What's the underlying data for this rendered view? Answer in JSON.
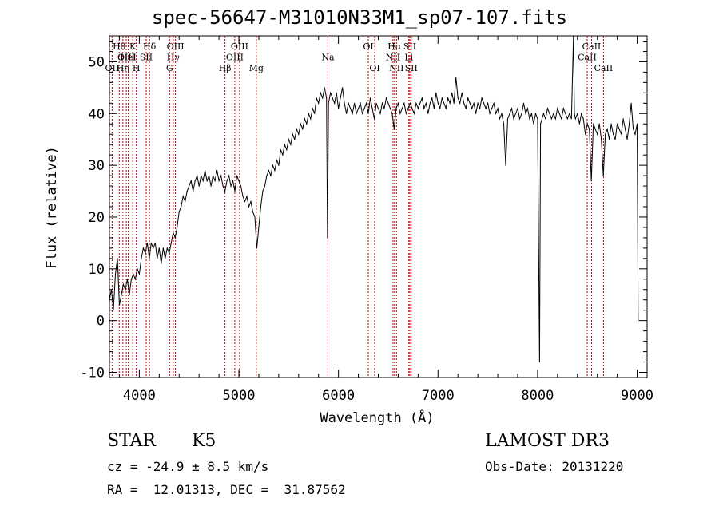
{
  "chart_data": {
    "type": "line",
    "title": "spec-56647-M31010N33M1_sp07-107.fits",
    "xlabel": "Wavelength (Å)",
    "ylabel": "Flux (relative)",
    "xlim": [
      3700,
      9100
    ],
    "ylim": [
      -11,
      55
    ],
    "xticks": [
      4000,
      5000,
      6000,
      7000,
      8000,
      9000
    ],
    "yticks": [
      -10,
      0,
      10,
      20,
      30,
      40,
      50
    ],
    "series": [
      {
        "name": "spectrum",
        "color": "#000000",
        "points": [
          [
            3700,
            4
          ],
          [
            3720,
            6
          ],
          [
            3740,
            2
          ],
          [
            3760,
            9
          ],
          [
            3780,
            12
          ],
          [
            3800,
            3
          ],
          [
            3820,
            5
          ],
          [
            3840,
            7
          ],
          [
            3860,
            6
          ],
          [
            3880,
            8
          ],
          [
            3900,
            5
          ],
          [
            3920,
            8
          ],
          [
            3940,
            9
          ],
          [
            3960,
            8
          ],
          [
            3980,
            10
          ],
          [
            4000,
            9
          ],
          [
            4020,
            12
          ],
          [
            4040,
            14
          ],
          [
            4060,
            13
          ],
          [
            4080,
            15
          ],
          [
            4100,
            12
          ],
          [
            4120,
            15
          ],
          [
            4140,
            14
          ],
          [
            4160,
            15
          ],
          [
            4180,
            12
          ],
          [
            4200,
            14
          ],
          [
            4220,
            11
          ],
          [
            4240,
            14
          ],
          [
            4260,
            12
          ],
          [
            4280,
            14
          ],
          [
            4300,
            13
          ],
          [
            4320,
            15
          ],
          [
            4340,
            17
          ],
          [
            4360,
            16
          ],
          [
            4380,
            18
          ],
          [
            4400,
            21
          ],
          [
            4420,
            22
          ],
          [
            4440,
            24
          ],
          [
            4460,
            23
          ],
          [
            4480,
            25
          ],
          [
            4500,
            26
          ],
          [
            4520,
            27
          ],
          [
            4540,
            25
          ],
          [
            4560,
            27
          ],
          [
            4580,
            28
          ],
          [
            4600,
            26
          ],
          [
            4620,
            28
          ],
          [
            4640,
            27
          ],
          [
            4660,
            29
          ],
          [
            4680,
            27
          ],
          [
            4700,
            28
          ],
          [
            4720,
            26
          ],
          [
            4740,
            28
          ],
          [
            4760,
            27
          ],
          [
            4780,
            29
          ],
          [
            4800,
            27
          ],
          [
            4820,
            28
          ],
          [
            4840,
            26
          ],
          [
            4860,
            25
          ],
          [
            4880,
            27
          ],
          [
            4900,
            28
          ],
          [
            4920,
            26
          ],
          [
            4940,
            27
          ],
          [
            4960,
            25
          ],
          [
            4980,
            28
          ],
          [
            5000,
            27
          ],
          [
            5020,
            26
          ],
          [
            5040,
            24
          ],
          [
            5060,
            23
          ],
          [
            5080,
            24
          ],
          [
            5100,
            22
          ],
          [
            5120,
            23
          ],
          [
            5140,
            21
          ],
          [
            5160,
            20
          ],
          [
            5180,
            14
          ],
          [
            5200,
            18
          ],
          [
            5220,
            22
          ],
          [
            5240,
            25
          ],
          [
            5260,
            26
          ],
          [
            5280,
            28
          ],
          [
            5300,
            29
          ],
          [
            5320,
            28
          ],
          [
            5340,
            30
          ],
          [
            5360,
            29
          ],
          [
            5380,
            31
          ],
          [
            5400,
            30
          ],
          [
            5420,
            33
          ],
          [
            5440,
            32
          ],
          [
            5460,
            34
          ],
          [
            5480,
            33
          ],
          [
            5500,
            35
          ],
          [
            5520,
            34
          ],
          [
            5540,
            36
          ],
          [
            5560,
            35
          ],
          [
            5580,
            37
          ],
          [
            5600,
            36
          ],
          [
            5620,
            38
          ],
          [
            5640,
            37
          ],
          [
            5660,
            39
          ],
          [
            5680,
            38
          ],
          [
            5700,
            40
          ],
          [
            5720,
            39
          ],
          [
            5740,
            41
          ],
          [
            5760,
            40
          ],
          [
            5780,
            43
          ],
          [
            5800,
            42
          ],
          [
            5820,
            44
          ],
          [
            5840,
            43
          ],
          [
            5860,
            45
          ],
          [
            5880,
            43
          ],
          [
            5890,
            16
          ],
          [
            5900,
            42
          ],
          [
            5920,
            44
          ],
          [
            5940,
            43
          ],
          [
            5960,
            42
          ],
          [
            5980,
            44
          ],
          [
            6000,
            41
          ],
          [
            6020,
            43
          ],
          [
            6040,
            45
          ],
          [
            6060,
            42
          ],
          [
            6080,
            40
          ],
          [
            6100,
            42
          ],
          [
            6120,
            41
          ],
          [
            6140,
            40
          ],
          [
            6160,
            42
          ],
          [
            6180,
            40
          ],
          [
            6200,
            41
          ],
          [
            6220,
            42
          ],
          [
            6240,
            40
          ],
          [
            6260,
            41
          ],
          [
            6280,
            42
          ],
          [
            6300,
            40
          ],
          [
            6320,
            43
          ],
          [
            6340,
            41
          ],
          [
            6360,
            39
          ],
          [
            6380,
            42
          ],
          [
            6400,
            41
          ],
          [
            6420,
            40
          ],
          [
            6440,
            42
          ],
          [
            6460,
            41
          ],
          [
            6480,
            43
          ],
          [
            6500,
            42
          ],
          [
            6520,
            41
          ],
          [
            6540,
            40
          ],
          [
            6560,
            37
          ],
          [
            6580,
            41
          ],
          [
            6600,
            42
          ],
          [
            6620,
            40
          ],
          [
            6640,
            41
          ],
          [
            6660,
            42
          ],
          [
            6680,
            40
          ],
          [
            6700,
            41
          ],
          [
            6720,
            42
          ],
          [
            6740,
            41
          ],
          [
            6760,
            40
          ],
          [
            6780,
            42
          ],
          [
            6800,
            41
          ],
          [
            6820,
            42
          ],
          [
            6840,
            43
          ],
          [
            6860,
            41
          ],
          [
            6880,
            42
          ],
          [
            6900,
            40
          ],
          [
            6920,
            42
          ],
          [
            6940,
            43
          ],
          [
            6960,
            41
          ],
          [
            6980,
            44
          ],
          [
            7000,
            42
          ],
          [
            7020,
            41
          ],
          [
            7040,
            43
          ],
          [
            7060,
            42
          ],
          [
            7080,
            41
          ],
          [
            7100,
            43
          ],
          [
            7120,
            42
          ],
          [
            7140,
            44
          ],
          [
            7160,
            42
          ],
          [
            7180,
            47
          ],
          [
            7200,
            43
          ],
          [
            7220,
            42
          ],
          [
            7240,
            44
          ],
          [
            7260,
            42
          ],
          [
            7280,
            41
          ],
          [
            7300,
            43
          ],
          [
            7320,
            42
          ],
          [
            7340,
            41
          ],
          [
            7360,
            42
          ],
          [
            7380,
            40
          ],
          [
            7400,
            42
          ],
          [
            7420,
            41
          ],
          [
            7440,
            43
          ],
          [
            7460,
            42
          ],
          [
            7480,
            41
          ],
          [
            7500,
            42
          ],
          [
            7520,
            40
          ],
          [
            7540,
            41
          ],
          [
            7560,
            42
          ],
          [
            7580,
            40
          ],
          [
            7600,
            41
          ],
          [
            7620,
            39
          ],
          [
            7640,
            40
          ],
          [
            7660,
            38
          ],
          [
            7680,
            30
          ],
          [
            7700,
            39
          ],
          [
            7720,
            40
          ],
          [
            7740,
            41
          ],
          [
            7760,
            39
          ],
          [
            7780,
            40
          ],
          [
            7800,
            41
          ],
          [
            7820,
            39
          ],
          [
            7840,
            40
          ],
          [
            7860,
            42
          ],
          [
            7880,
            40
          ],
          [
            7900,
            41
          ],
          [
            7920,
            39
          ],
          [
            7940,
            40
          ],
          [
            7960,
            38
          ],
          [
            7980,
            40
          ],
          [
            8000,
            39
          ],
          [
            8020,
            -8
          ],
          [
            8030,
            38
          ],
          [
            8060,
            40
          ],
          [
            8080,
            39
          ],
          [
            8100,
            41
          ],
          [
            8120,
            40
          ],
          [
            8140,
            39
          ],
          [
            8160,
            40
          ],
          [
            8180,
            39
          ],
          [
            8200,
            41
          ],
          [
            8220,
            40
          ],
          [
            8240,
            39
          ],
          [
            8260,
            41
          ],
          [
            8280,
            40
          ],
          [
            8300,
            39
          ],
          [
            8320,
            40
          ],
          [
            8340,
            39
          ],
          [
            8360,
            55
          ],
          [
            8370,
            40
          ],
          [
            8380,
            39
          ],
          [
            8400,
            40
          ],
          [
            8420,
            38
          ],
          [
            8440,
            40
          ],
          [
            8460,
            39
          ],
          [
            8480,
            36
          ],
          [
            8500,
            38
          ],
          [
            8520,
            37
          ],
          [
            8540,
            27
          ],
          [
            8560,
            38
          ],
          [
            8580,
            37
          ],
          [
            8600,
            36
          ],
          [
            8620,
            38
          ],
          [
            8640,
            35
          ],
          [
            8660,
            28
          ],
          [
            8680,
            36
          ],
          [
            8700,
            37
          ],
          [
            8720,
            35
          ],
          [
            8740,
            38
          ],
          [
            8760,
            36
          ],
          [
            8780,
            35
          ],
          [
            8800,
            38
          ],
          [
            8820,
            37
          ],
          [
            8840,
            36
          ],
          [
            8860,
            39
          ],
          [
            8880,
            37
          ],
          [
            8900,
            35
          ],
          [
            8920,
            38
          ],
          [
            8940,
            42
          ],
          [
            8960,
            37
          ],
          [
            8980,
            36
          ],
          [
            9000,
            38
          ],
          [
            9010,
            0
          ]
        ]
      }
    ],
    "line_color": "#c00000",
    "lines": [
      {
        "wl": 3727,
        "label": "OII",
        "row": 2
      },
      {
        "wl": 3798,
        "label": "Hθ",
        "row": 0
      },
      {
        "wl": 3835,
        "label": "Hη",
        "row": 2
      },
      {
        "wl": 3869,
        "label": "OIII",
        "row": 1
      },
      {
        "wl": 3889,
        "label": "HeI",
        "row": 1
      },
      {
        "wl": 3934,
        "label": "K",
        "row": 0
      },
      {
        "wl": 3970,
        "label": "H",
        "row": 2
      },
      {
        "wl": 4069,
        "label": "SII",
        "row": 1
      },
      {
        "wl": 4102,
        "label": "Hδ",
        "row": 0
      },
      {
        "wl": 4304,
        "label": "G",
        "row": 2
      },
      {
        "wl": 4341,
        "label": "Hγ",
        "row": 1
      },
      {
        "wl": 4363,
        "label": "OIII",
        "row": 0
      },
      {
        "wl": 4861,
        "label": "Hβ",
        "row": 2
      },
      {
        "wl": 4959,
        "label": "OIII",
        "row": 1
      },
      {
        "wl": 5007,
        "label": "OIII",
        "row": 0
      },
      {
        "wl": 5175,
        "label": "Mg",
        "row": 2
      },
      {
        "wl": 5894,
        "label": "Na",
        "row": 1
      },
      {
        "wl": 6300,
        "label": "OI",
        "row": 0
      },
      {
        "wl": 6364,
        "label": "OI",
        "row": 2
      },
      {
        "wl": 6548,
        "label": "NII",
        "row": 1
      },
      {
        "wl": 6563,
        "label": "Hα",
        "row": 0
      },
      {
        "wl": 6583,
        "label": "NII",
        "row": 2
      },
      {
        "wl": 6707,
        "label": "Li",
        "row": 1
      },
      {
        "wl": 6717,
        "label": "SII",
        "row": 0
      },
      {
        "wl": 6731,
        "label": "SII",
        "row": 2
      },
      {
        "wl": 8498,
        "label": "CaII",
        "row": 1
      },
      {
        "wl": 8542,
        "label": "CaII",
        "row": 0
      },
      {
        "wl": 8662,
        "label": "CaII",
        "row": 2
      }
    ]
  },
  "info": {
    "class": "STAR",
    "subclass": "K5",
    "survey": "LAMOST DR3",
    "cz": "cz = -24.9 ± 8.5 km/s",
    "obs_date": "Obs-Date: 20131220",
    "coords": "RA =  12.01313, DEC =  31.87562"
  }
}
